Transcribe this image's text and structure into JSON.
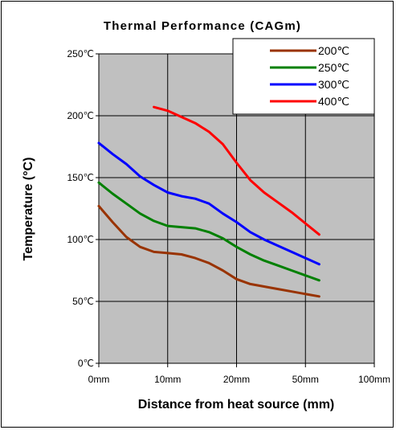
{
  "chart_data": {
    "type": "line",
    "title": "Thermal Performance (CAGm)",
    "xlabel": "Distance from heat source (mm)",
    "ylabel": "Temperature (°C)",
    "x_tick_labels": [
      "0mm",
      "10mm",
      "20mm",
      "50mm",
      "100mm"
    ],
    "y_tick_labels": [
      "0℃",
      "50℃",
      "100℃",
      "150℃",
      "200℃",
      "250℃"
    ],
    "ylim": [
      0,
      250
    ],
    "x_range": [
      0,
      100
    ],
    "grid": true,
    "legend_position": "top-right",
    "plot_background": "#c0c0c0",
    "series": [
      {
        "name": "200℃",
        "color": "#993300",
        "points": [
          [
            0,
            127
          ],
          [
            5,
            114
          ],
          [
            10,
            102
          ],
          [
            15,
            94
          ],
          [
            20,
            90
          ],
          [
            25,
            89
          ],
          [
            30,
            88
          ],
          [
            35,
            85
          ],
          [
            40,
            81
          ],
          [
            45,
            75
          ],
          [
            50,
            68
          ],
          [
            55,
            64
          ],
          [
            60,
            62
          ],
          [
            65,
            60
          ],
          [
            70,
            58
          ],
          [
            75,
            56
          ],
          [
            80,
            54
          ]
        ]
      },
      {
        "name": "250℃",
        "color": "#008000",
        "points": [
          [
            0,
            146
          ],
          [
            5,
            137
          ],
          [
            10,
            129
          ],
          [
            15,
            121
          ],
          [
            20,
            115
          ],
          [
            25,
            111
          ],
          [
            30,
            110
          ],
          [
            35,
            109
          ],
          [
            40,
            106
          ],
          [
            45,
            101
          ],
          [
            50,
            94
          ],
          [
            55,
            88
          ],
          [
            60,
            83
          ],
          [
            65,
            79
          ],
          [
            70,
            75
          ],
          [
            75,
            71
          ],
          [
            80,
            67
          ]
        ]
      },
      {
        "name": "300℃",
        "color": "#0000ff",
        "points": [
          [
            0,
            178
          ],
          [
            5,
            169
          ],
          [
            10,
            161
          ],
          [
            15,
            151
          ],
          [
            20,
            144
          ],
          [
            25,
            138
          ],
          [
            30,
            135
          ],
          [
            35,
            133
          ],
          [
            40,
            129
          ],
          [
            45,
            121
          ],
          [
            50,
            114
          ],
          [
            55,
            106
          ],
          [
            60,
            100
          ],
          [
            65,
            95
          ],
          [
            70,
            90
          ],
          [
            75,
            85
          ],
          [
            80,
            80
          ]
        ]
      },
      {
        "name": "400℃",
        "color": "#ff0000",
        "points": [
          [
            20,
            207
          ],
          [
            25,
            204
          ],
          [
            30,
            199
          ],
          [
            35,
            194
          ],
          [
            40,
            187
          ],
          [
            45,
            177
          ],
          [
            50,
            162
          ],
          [
            55,
            148
          ],
          [
            60,
            138
          ],
          [
            65,
            130
          ],
          [
            70,
            122
          ],
          [
            75,
            113
          ],
          [
            80,
            104
          ]
        ]
      }
    ]
  }
}
